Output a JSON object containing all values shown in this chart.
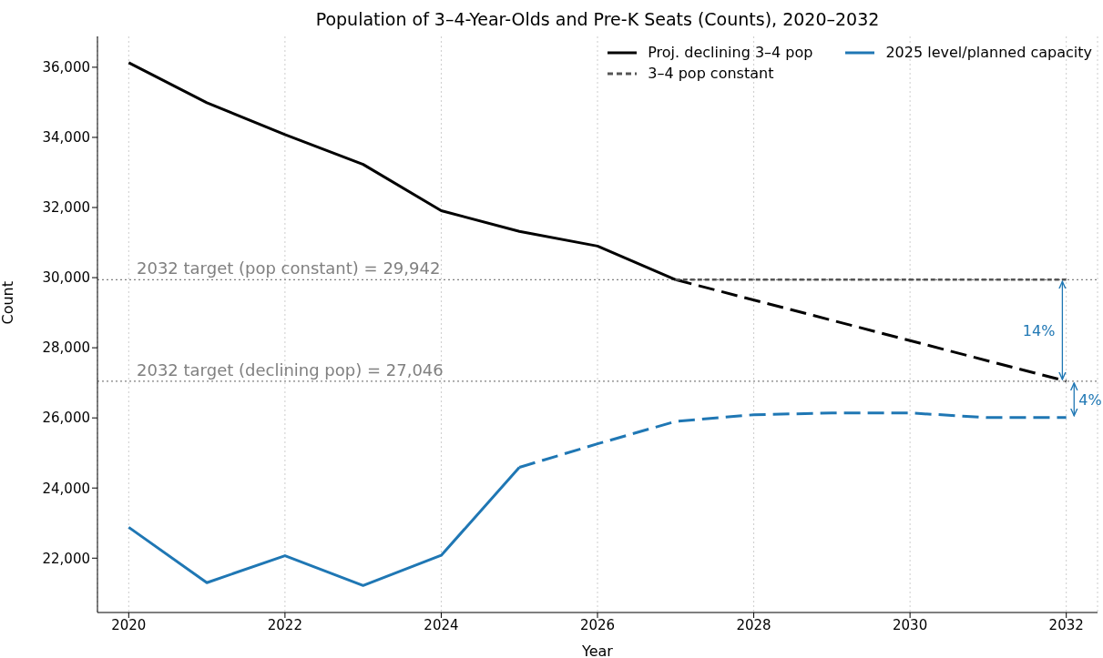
{
  "chart_data": {
    "type": "line",
    "title": "Population of 3–4-Year-Olds and Pre-K Seats (Counts), 2020–2032",
    "xlabel": "Year",
    "ylabel": "Count",
    "xlim": [
      2019.6,
      2032.4
    ],
    "xticks": [
      2020,
      2022,
      2024,
      2026,
      2028,
      2030,
      2032
    ],
    "ylim": [
      20450,
      36880
    ],
    "yticks": [
      {
        "value": 22000,
        "label": "22,000"
      },
      {
        "value": 24000,
        "label": "24,000"
      },
      {
        "value": 26000,
        "label": "26,000"
      },
      {
        "value": 28000,
        "label": "28,000"
      },
      {
        "value": 30000,
        "label": "30,000"
      },
      {
        "value": 32000,
        "label": "32,000"
      },
      {
        "value": 34000,
        "label": "34,000"
      },
      {
        "value": 36000,
        "label": "36,000"
      }
    ],
    "grid": "x",
    "legend": "top right",
    "series": [
      {
        "name": "Proj. declining 3–4 pop",
        "color": "#000000",
        "line_style": "solid",
        "x": [
          2020,
          2021,
          2022,
          2023,
          2024,
          2025,
          2026,
          2027
        ],
        "values": [
          36130,
          34990,
          34080,
          33230,
          31910,
          31320,
          30900,
          29942
        ]
      },
      {
        "color": "#000000",
        "line_style": "dashed",
        "x": [
          2027,
          2032
        ],
        "values": [
          29942,
          27046
        ]
      },
      {
        "name": "3–4 pop constant",
        "color": "#555555",
        "line_style": "dotted",
        "x": [
          2027,
          2032
        ],
        "values": [
          29942,
          29942
        ]
      },
      {
        "name": "2025 level/planned capacity",
        "color": "#1f77b4",
        "line_style": "solid",
        "x": [
          2020,
          2021,
          2022,
          2023,
          2024,
          2025
        ],
        "values": [
          22880,
          21300,
          22070,
          21220,
          22080,
          24590
        ]
      },
      {
        "color": "#1f77b4",
        "line_style": "dashed",
        "x": [
          2025,
          2026,
          2027,
          2028,
          2029,
          2030,
          2031,
          2032
        ],
        "values": [
          24590,
          25260,
          25900,
          26090,
          26140,
          26140,
          26010,
          26010
        ]
      }
    ],
    "ref_lines": [
      {
        "axis": "y",
        "value": 29942,
        "label": "2032 target (pop constant) = 29,942",
        "color": "#808080",
        "line_style": "dotted"
      },
      {
        "axis": "y",
        "value": 27046,
        "label": "2032 target (declining pop) = 27,046",
        "color": "#808080",
        "line_style": "dotted"
      }
    ],
    "annotations": [
      "14%",
      "4%"
    ]
  }
}
